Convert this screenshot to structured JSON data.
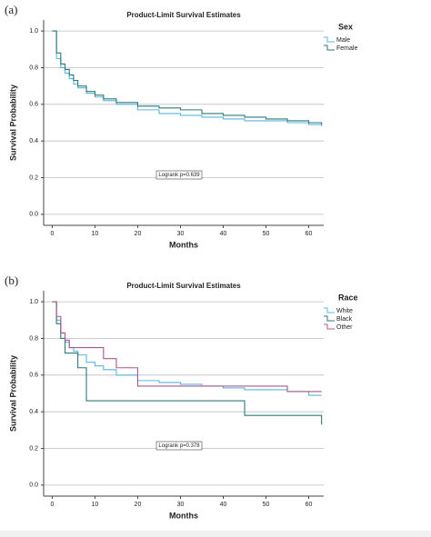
{
  "chart_data": [
    {
      "type": "step",
      "panel_label": "(a)",
      "title": "Product-Limit Survival Estimates",
      "x_label": "Months",
      "y_label": "Survival Probability",
      "legend_title": "Sex",
      "annotation": "Logrank p=0.639",
      "x": [
        0,
        1,
        2,
        3,
        4,
        5,
        6,
        8,
        10,
        12,
        15,
        20,
        25,
        30,
        35,
        40,
        45,
        50,
        55,
        60,
        63
      ],
      "series": [
        {
          "name": "Male",
          "color": "#5ab4e5",
          "values": [
            1.0,
            0.85,
            0.8,
            0.77,
            0.74,
            0.71,
            0.69,
            0.66,
            0.64,
            0.62,
            0.6,
            0.57,
            0.55,
            0.54,
            0.53,
            0.52,
            0.51,
            0.51,
            0.5,
            0.49,
            0.48
          ]
        },
        {
          "name": "Female",
          "color": "#2b7a78",
          "values": [
            1.0,
            0.88,
            0.82,
            0.79,
            0.76,
            0.73,
            0.7,
            0.67,
            0.65,
            0.63,
            0.61,
            0.59,
            0.58,
            0.57,
            0.55,
            0.54,
            0.53,
            0.52,
            0.51,
            0.5,
            0.49
          ]
        }
      ],
      "xlim": [
        -2,
        63.5
      ],
      "xticks": [
        0,
        10,
        20,
        30,
        40,
        50,
        60
      ],
      "ylim": [
        -0.06,
        1.06
      ],
      "yticks": [
        {
          "value": 0,
          "label": "0.0"
        },
        0.2,
        0.4,
        0.6,
        0.8,
        {
          "value": 1,
          "label": "1.0"
        }
      ],
      "grid": true
    },
    {
      "type": "step",
      "panel_label": "(b)",
      "title": "Product-Limit Survival Estimates",
      "x_label": "Months",
      "y_label": "Survival Probability",
      "legend_title": "Race",
      "annotation": "Logrank p=0.378",
      "x": [
        0,
        1,
        2,
        3,
        4,
        5,
        6,
        8,
        10,
        12,
        15,
        20,
        25,
        30,
        35,
        40,
        45,
        50,
        55,
        60,
        63
      ],
      "series": [
        {
          "name": "White",
          "color": "#5ab4e5",
          "values": [
            1.0,
            0.9,
            0.83,
            0.78,
            0.75,
            0.73,
            0.71,
            0.67,
            0.65,
            0.63,
            0.6,
            0.57,
            0.56,
            0.55,
            0.54,
            0.53,
            0.52,
            0.52,
            0.51,
            0.49,
            0.49
          ]
        },
        {
          "name": "Black",
          "color": "#2b7a78",
          "values": [
            1.0,
            0.88,
            0.8,
            0.72,
            0.72,
            0.72,
            0.64,
            0.46,
            0.46,
            0.46,
            0.46,
            0.46,
            0.46,
            0.46,
            0.46,
            0.46,
            0.38,
            0.38,
            0.38,
            0.38,
            0.33
          ]
        },
        {
          "name": "Other",
          "color": "#a8588a",
          "values": [
            1.0,
            0.92,
            0.83,
            0.79,
            0.75,
            0.75,
            0.75,
            0.75,
            0.75,
            0.69,
            0.64,
            0.54,
            0.54,
            0.54,
            0.54,
            0.54,
            0.54,
            0.54,
            0.51,
            0.51,
            0.51
          ]
        }
      ],
      "xlim": [
        -2,
        63.5
      ],
      "xticks": [
        0,
        10,
        20,
        30,
        40,
        50,
        60
      ],
      "ylim": [
        -0.06,
        1.06
      ],
      "yticks": [
        {
          "value": 0,
          "label": "0.0"
        },
        0.2,
        0.4,
        0.6,
        0.8,
        {
          "value": 1,
          "label": "1.0"
        }
      ],
      "grid": true
    }
  ]
}
